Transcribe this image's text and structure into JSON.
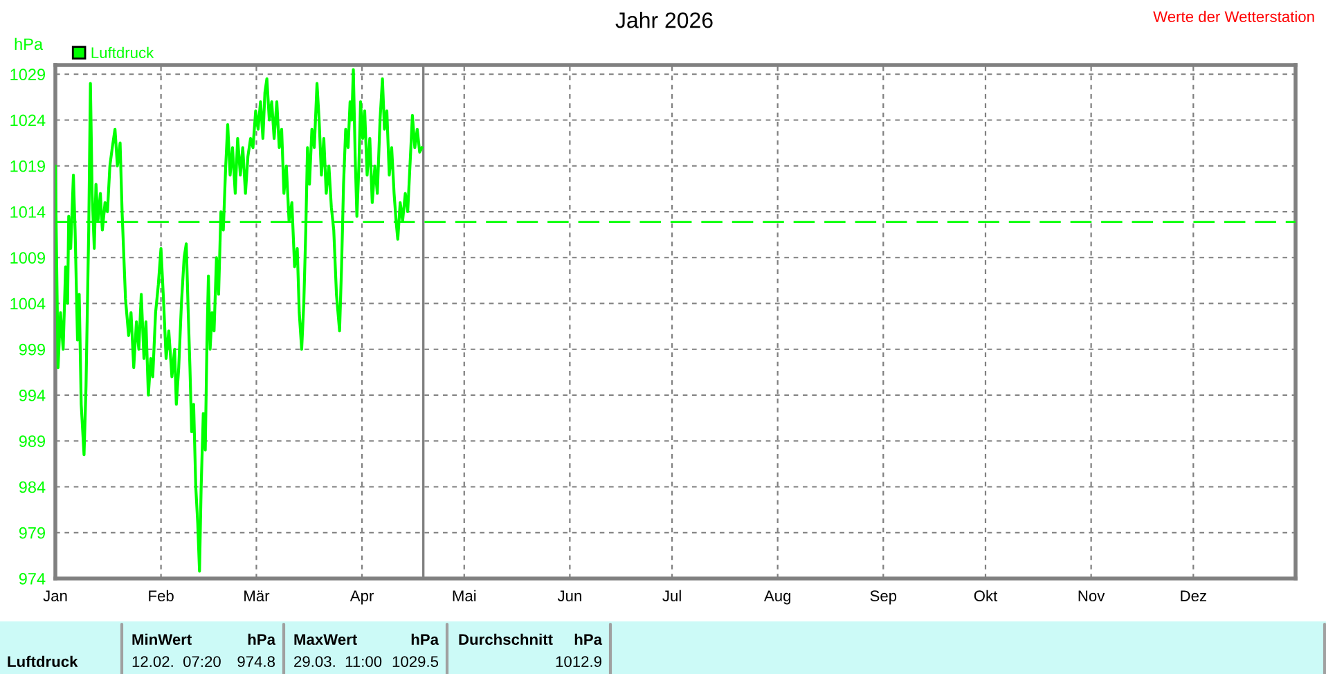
{
  "chart_data": {
    "type": "line",
    "title": "Jahr 2026",
    "ylabel": "hPa",
    "annotations": [
      "Werte der Wetterstation",
      "Luftdruck",
      "MinWert",
      "hPa",
      "12.02.  07:20",
      "974.8",
      "MaxWert",
      "hPa",
      "29.03.  11:00",
      "1029.5",
      "Durchschnitt",
      "hPa",
      "1012.9"
    ],
    "x": [
      "2026-01-01",
      "2026-01-01T19:00",
      "2026-01-02T12:00",
      "2026-01-03T07:00",
      "2026-01-04",
      "2026-01-04T14:00",
      "2026-01-04T22:00",
      "2026-01-05T12:00",
      "2026-01-06T07:00",
      "2026-01-06T19:00",
      "2026-01-07T12:00",
      "2026-01-08",
      "2026-01-08T14:00",
      "2026-01-09T10:00",
      "2026-01-10",
      "2026-01-10T10:00",
      "2026-01-10T19:00",
      "2026-01-11T07:00",
      "2026-01-11T19:00",
      "2026-01-12T10:00",
      "2026-01-12T22:00",
      "2026-01-13T12:00",
      "2026-01-14T05:00",
      "2026-01-14T19:00",
      "2026-01-15T14:00",
      "2026-01-16T07:00",
      "2026-01-17",
      "2026-01-17T17:00",
      "2026-01-18T12:00",
      "2026-01-19T05:00",
      "2026-01-20",
      "2026-01-20T14:00",
      "2026-01-21T14:00",
      "2026-01-22T12:00",
      "2026-01-23T05:00",
      "2026-01-24",
      "2026-01-24T19:00",
      "2026-01-25T12:00",
      "2026-01-26T05:00",
      "2026-01-27",
      "2026-01-27T14:00",
      "2026-01-28T07:00",
      "2026-01-29",
      "2026-01-29T14:00",
      "2026-01-30T10:00",
      "2026-01-31T05:00",
      "2026-02-01",
      "2026-02-01T19:00",
      "2026-02-02T12:00",
      "2026-02-03T07:00",
      "2026-02-04T05:00",
      "2026-02-05",
      "2026-02-05T12:00",
      "2026-02-06T05:00",
      "2026-02-07",
      "2026-02-07T19:00",
      "2026-02-08T10:00",
      "2026-02-09",
      "2026-02-09T12:00",
      "2026-02-10",
      "2026-02-10T14:00",
      "2026-02-11T05:00",
      "2026-02-11T19:00",
      "2026-02-12T07:20",
      "2026-02-12T19:00",
      "2026-02-13T10:00",
      "2026-02-14",
      "2026-02-14T12:00",
      "2026-02-14T22:00",
      "2026-02-15T10:00",
      "2026-02-16",
      "2026-02-16T14:00",
      "2026-02-17T07:00",
      "2026-02-17T22:00",
      "2026-02-18T14:00",
      "2026-02-19T07:00",
      "2026-02-20",
      "2026-02-20T14:00",
      "2026-02-21T07:00",
      "2026-02-22",
      "2026-02-22T19:00",
      "2026-02-23T12:00",
      "2026-02-24T07:00",
      "2026-02-25",
      "2026-02-25T19:00",
      "2026-02-26T12:00",
      "2026-02-27T07:00",
      "2026-02-28",
      "2026-02-28T19:00",
      "2026-03-01T12:00",
      "2026-03-02T05:00",
      "2026-03-02T22:00",
      "2026-03-03T12:00",
      "2026-03-04T02:00",
      "2026-03-04T19:00",
      "2026-03-05T12:00",
      "2026-03-06T05:00",
      "2026-03-07",
      "2026-03-07T17:00",
      "2026-03-08T10:00",
      "2026-03-09T02:00",
      "2026-03-09T19:00",
      "2026-03-10T14:00",
      "2026-03-11T10:00",
      "2026-03-12T05:00",
      "2026-03-13",
      "2026-03-13T14:00",
      "2026-03-14T07:00",
      "2026-03-14T22:00",
      "2026-03-15T12:00",
      "2026-03-16",
      "2026-03-16T14:00",
      "2026-03-17T07:00",
      "2026-03-18",
      "2026-03-18T19:00",
      "2026-03-19T10:00",
      "2026-03-20T02:00",
      "2026-03-20T19:00",
      "2026-03-21T12:00",
      "2026-03-22T07:00",
      "2026-03-23",
      "2026-03-23T17:00",
      "2026-03-24T12:00",
      "2026-03-25T10:00",
      "2026-03-26",
      "2026-03-26T14:00",
      "2026-03-27T05:00",
      "2026-03-27T22:00",
      "2026-03-28T12:00",
      "2026-03-29",
      "2026-03-29T11:00",
      "2026-03-30",
      "2026-03-30T12:00",
      "2026-03-31T02:00",
      "2026-03-31T14:00",
      "2026-04-01T05:00",
      "2026-04-01T19:00",
      "2026-04-02T12:00",
      "2026-04-03T07:00",
      "2026-04-04",
      "2026-04-04T19:00",
      "2026-04-05T12:00",
      "2026-04-06T07:00",
      "2026-04-07",
      "2026-04-07T14:00",
      "2026-04-08T07:00",
      "2026-04-09",
      "2026-04-09T17:00",
      "2026-04-10T10:00",
      "2026-04-11",
      "2026-04-11T12:00",
      "2026-04-12T05:00",
      "2026-04-12T22:00",
      "2026-04-13T17:00",
      "2026-04-14T10:00",
      "2026-04-15T05:00",
      "2026-04-15T19:00",
      "2026-04-16T12:00",
      "2026-04-17T05:00",
      "2026-04-17T22:00",
      "2026-04-18T14:00"
    ],
    "series": [
      {
        "name": "Luftdruck",
        "color": "#00ff00",
        "values": [
          1019,
          997,
          1003,
          999,
          1008,
          1004,
          1013.5,
          1010,
          1018,
          1012,
          1000,
          1005,
          993,
          987.5,
          995,
          1004,
          1012,
          1028,
          1016,
          1010,
          1017,
          1013,
          1016,
          1012,
          1015,
          1014,
          1019,
          1021,
          1023,
          1019,
          1021.5,
          1014,
          1004.5,
          1000.5,
          1003,
          997,
          1002,
          999,
          1005,
          998,
          1002,
          994,
          998,
          996,
          1003,
          1006,
          1010,
          1004,
          998,
          1001,
          996,
          999,
          993,
          997,
          1004,
          1009,
          1010.5,
          1003,
          997,
          990,
          993,
          984,
          980,
          974.8,
          984,
          992,
          988,
          1000,
          1007,
          999,
          1003,
          1001,
          1009,
          1005,
          1014,
          1012,
          1019,
          1023.5,
          1018,
          1021,
          1016,
          1022,
          1018,
          1021,
          1016,
          1020,
          1022,
          1021,
          1025,
          1023,
          1026,
          1022,
          1027,
          1028.5,
          1024,
          1026,
          1022,
          1026,
          1021,
          1023,
          1016,
          1019,
          1013,
          1015,
          1008,
          1010,
          1003,
          999,
          1004,
          1012,
          1021,
          1017,
          1023,
          1021,
          1028,
          1024,
          1018,
          1022,
          1016,
          1019,
          1014.5,
          1012,
          1005,
          1001,
          1008,
          1017,
          1023,
          1021,
          1026,
          1024,
          1029.5,
          1020,
          1013.5,
          1019,
          1026,
          1022,
          1025,
          1018,
          1022,
          1015,
          1019,
          1016,
          1024,
          1028.5,
          1023,
          1025,
          1018,
          1021,
          1016,
          1013,
          1011,
          1015,
          1013,
          1016,
          1014,
          1020,
          1024.5,
          1021,
          1023,
          1020.5,
          1021
        ]
      }
    ],
    "xlim": [
      "2026-01-01",
      "2026-12-31"
    ],
    "xticks": [
      {
        "value": "2026-01-01",
        "label": "Jan"
      },
      {
        "value": "2026-02-01",
        "label": "Feb"
      },
      {
        "value": "2026-03-01",
        "label": "Mär"
      },
      {
        "value": "2026-04-01",
        "label": "Apr"
      },
      {
        "value": "2026-05-01",
        "label": "Mai"
      },
      {
        "value": "2026-06-01",
        "label": "Jun"
      },
      {
        "value": "2026-07-01",
        "label": "Jul"
      },
      {
        "value": "2026-08-01",
        "label": "Aug"
      },
      {
        "value": "2026-09-01",
        "label": "Sep"
      },
      {
        "value": "2026-10-01",
        "label": "Okt"
      },
      {
        "value": "2026-11-01",
        "label": "Nov"
      },
      {
        "value": "2026-12-01",
        "label": "Dez"
      }
    ],
    "ylim": [
      974,
      1030
    ],
    "yticks": [
      974,
      979,
      984,
      989,
      994,
      999,
      1004,
      1009,
      1014,
      1019,
      1024,
      1029
    ],
    "ref_lines": [
      {
        "axis": "y",
        "value": 1012.9,
        "color": "#00ff00",
        "line_style": "dashed"
      },
      {
        "axis": "x",
        "value": "2026-04-19",
        "color": "#808080",
        "line_style": "solid"
      }
    ],
    "grid": true,
    "legend": "top left",
    "line_style": "solid"
  }
}
